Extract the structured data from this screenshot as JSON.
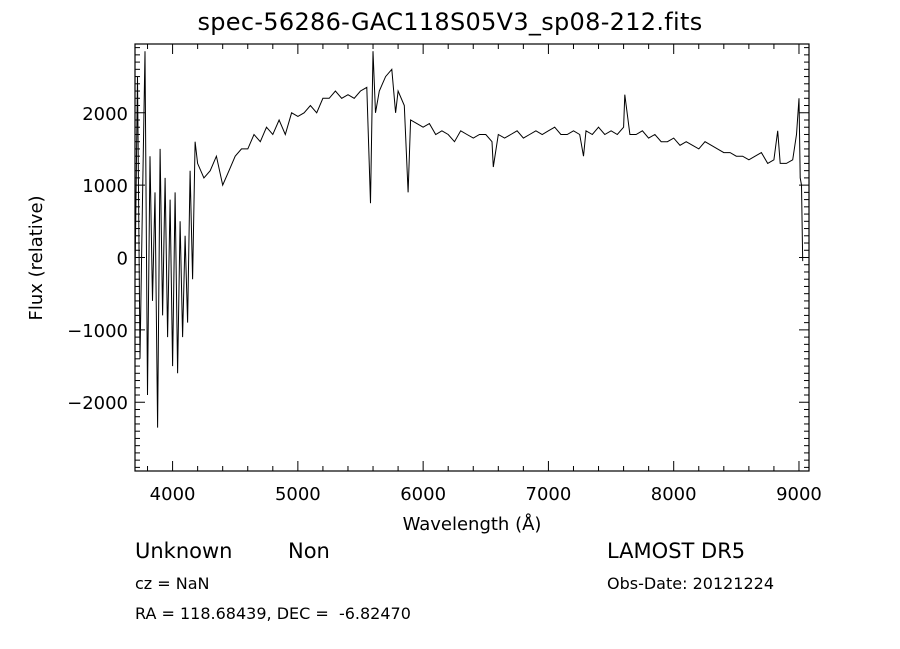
{
  "chart_data": {
    "type": "line",
    "title": "spec-56286-GAC118S05V3_sp08-212.fits",
    "xlabel": "Wavelength (Å)",
    "ylabel": "Flux (relative)",
    "xlim": [
      3700,
      9080
    ],
    "ylim": [
      -2950,
      2950
    ],
    "xticks": [
      4000,
      5000,
      6000,
      7000,
      8000,
      9000
    ],
    "yticks": [
      -2000,
      -1000,
      0,
      1000,
      2000
    ],
    "grid": false,
    "series": [
      {
        "x": [
          3700,
          3720,
          3740,
          3760,
          3780,
          3800,
          3820,
          3840,
          3860,
          3880,
          3900,
          3920,
          3940,
          3960,
          3980,
          4000,
          4020,
          4040,
          4060,
          4080,
          4100,
          4120,
          4140,
          4160,
          4180,
          4200,
          4250,
          4300,
          4350,
          4400,
          4450,
          4500,
          4550,
          4600,
          4650,
          4700,
          4750,
          4800,
          4850,
          4900,
          4950,
          5000,
          5050,
          5100,
          5150,
          5200,
          5250,
          5300,
          5350,
          5400,
          5450,
          5500,
          5550,
          5580,
          5600,
          5620,
          5650,
          5700,
          5750,
          5780,
          5800,
          5850,
          5880,
          5900,
          5950,
          6000,
          6050,
          6100,
          6150,
          6200,
          6250,
          6300,
          6350,
          6400,
          6450,
          6500,
          6550,
          6560,
          6600,
          6650,
          6700,
          6750,
          6800,
          6850,
          6900,
          6950,
          7000,
          7050,
          7100,
          7150,
          7200,
          7250,
          7280,
          7300,
          7350,
          7400,
          7450,
          7500,
          7550,
          7600,
          7610,
          7650,
          7700,
          7750,
          7800,
          7850,
          7900,
          7950,
          8000,
          8050,
          8100,
          8150,
          8200,
          8250,
          8300,
          8350,
          8400,
          8450,
          8500,
          8550,
          8600,
          8650,
          8700,
          8750,
          8800,
          8830,
          8850,
          8900,
          8950,
          8980,
          9000,
          9010,
          9020,
          9030
        ],
        "y": [
          -300,
          2500,
          -1400,
          800,
          2850,
          -1900,
          1400,
          -600,
          900,
          -2350,
          1500,
          -800,
          1100,
          -1100,
          800,
          -1500,
          900,
          -1600,
          500,
          -1100,
          300,
          -900,
          1200,
          -300,
          1600,
          1300,
          1100,
          1200,
          1400,
          1000,
          1200,
          1400,
          1500,
          1500,
          1700,
          1600,
          1800,
          1700,
          1900,
          1700,
          2000,
          1950,
          2000,
          2100,
          2000,
          2200,
          2200,
          2300,
          2200,
          2250,
          2200,
          2300,
          2350,
          750,
          2850,
          2000,
          2300,
          2500,
          2600,
          2000,
          2300,
          2100,
          900,
          1900,
          1850,
          1800,
          1850,
          1700,
          1750,
          1700,
          1600,
          1750,
          1700,
          1650,
          1700,
          1700,
          1600,
          1250,
          1700,
          1650,
          1700,
          1750,
          1650,
          1700,
          1750,
          1700,
          1750,
          1800,
          1700,
          1700,
          1750,
          1700,
          1400,
          1750,
          1700,
          1800,
          1700,
          1750,
          1700,
          1800,
          2250,
          1700,
          1700,
          1750,
          1650,
          1700,
          1600,
          1600,
          1650,
          1550,
          1600,
          1550,
          1500,
          1600,
          1550,
          1500,
          1450,
          1450,
          1400,
          1400,
          1350,
          1400,
          1450,
          1300,
          1350,
          1750,
          1300,
          1300,
          1350,
          1700,
          2200,
          1100,
          1000,
          -50
        ]
      }
    ]
  },
  "footer": {
    "object_class": "Unknown",
    "subclass": "Non",
    "cz": "cz = NaN",
    "coords": "RA = 118.68439, DEC =  -6.82470",
    "survey": "LAMOST DR5",
    "obs_date": "Obs-Date: 20121224"
  }
}
